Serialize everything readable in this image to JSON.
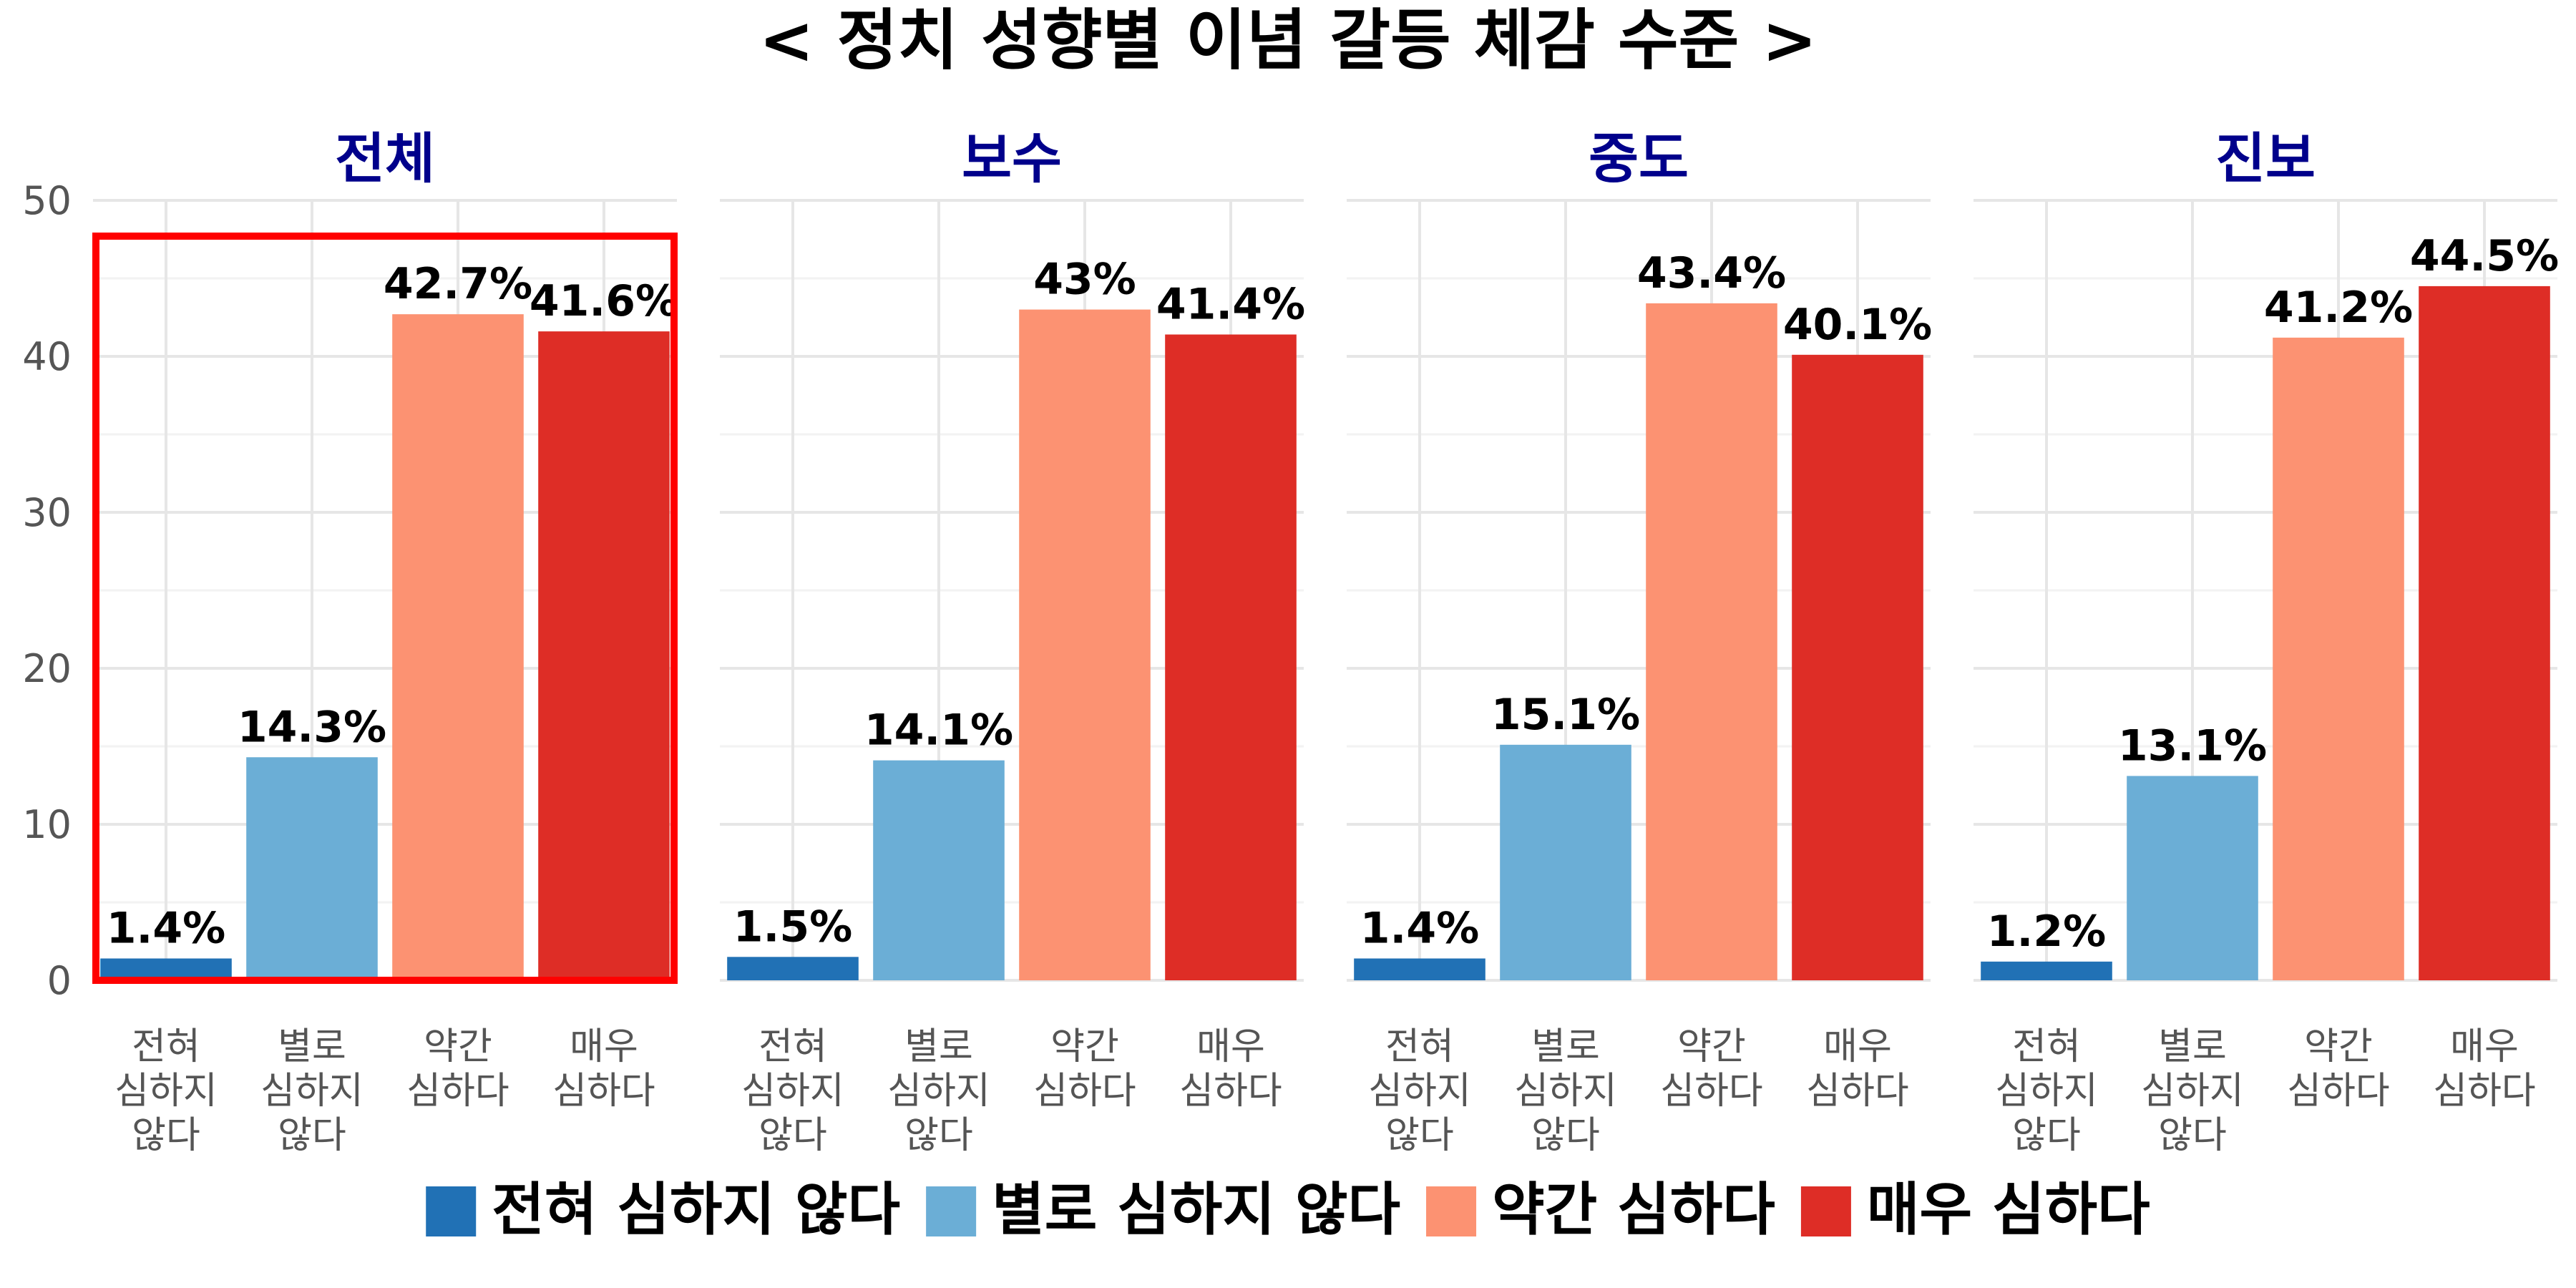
{
  "chart_data": {
    "type": "bar",
    "title": "< 정치 성향별 이념 갈등 체감 수준 >",
    "xlabel": "",
    "ylabel": "",
    "ylim": [
      0,
      50
    ],
    "y_ticks": [
      "0",
      "10",
      "20",
      "30",
      "40",
      "50"
    ],
    "grid": true,
    "legend_position": "bottom",
    "categories": [
      {
        "label": "전혀 심하지 않다",
        "tick_lines": [
          "전혀",
          "심하지",
          "않다"
        ]
      },
      {
        "label": "별로 심하지 않다",
        "tick_lines": [
          "별로",
          "심하지",
          "않다"
        ]
      },
      {
        "label": "약간 심하다",
        "tick_lines": [
          "약간",
          "심하다"
        ]
      },
      {
        "label": "매우 심하다",
        "tick_lines": [
          "매우",
          "심하다"
        ]
      }
    ],
    "colors": [
      "#2171b5",
      "#6baed6",
      "#fc9272",
      "#de2d26"
    ],
    "highlight_color": "#ff0000",
    "title_color": "#00008B",
    "panels": [
      {
        "name": "전체",
        "values": [
          1.4,
          14.3,
          42.7,
          41.6
        ],
        "labels": [
          "1.4%",
          "14.3%",
          "42.7%",
          "41.6%"
        ],
        "highlighted": true
      },
      {
        "name": "보수",
        "values": [
          1.5,
          14.1,
          43.0,
          41.4
        ],
        "labels": [
          "1.5%",
          "14.1%",
          "43%",
          "41.4%"
        ],
        "highlighted": false
      },
      {
        "name": "중도",
        "values": [
          1.4,
          15.1,
          43.4,
          40.1
        ],
        "labels": [
          "1.4%",
          "15.1%",
          "43.4%",
          "40.1%"
        ],
        "highlighted": false
      },
      {
        "name": "진보",
        "values": [
          1.2,
          13.1,
          41.2,
          44.5
        ],
        "labels": [
          "1.2%",
          "13.1%",
          "41.2%",
          "44.5%"
        ],
        "highlighted": false
      }
    ]
  }
}
